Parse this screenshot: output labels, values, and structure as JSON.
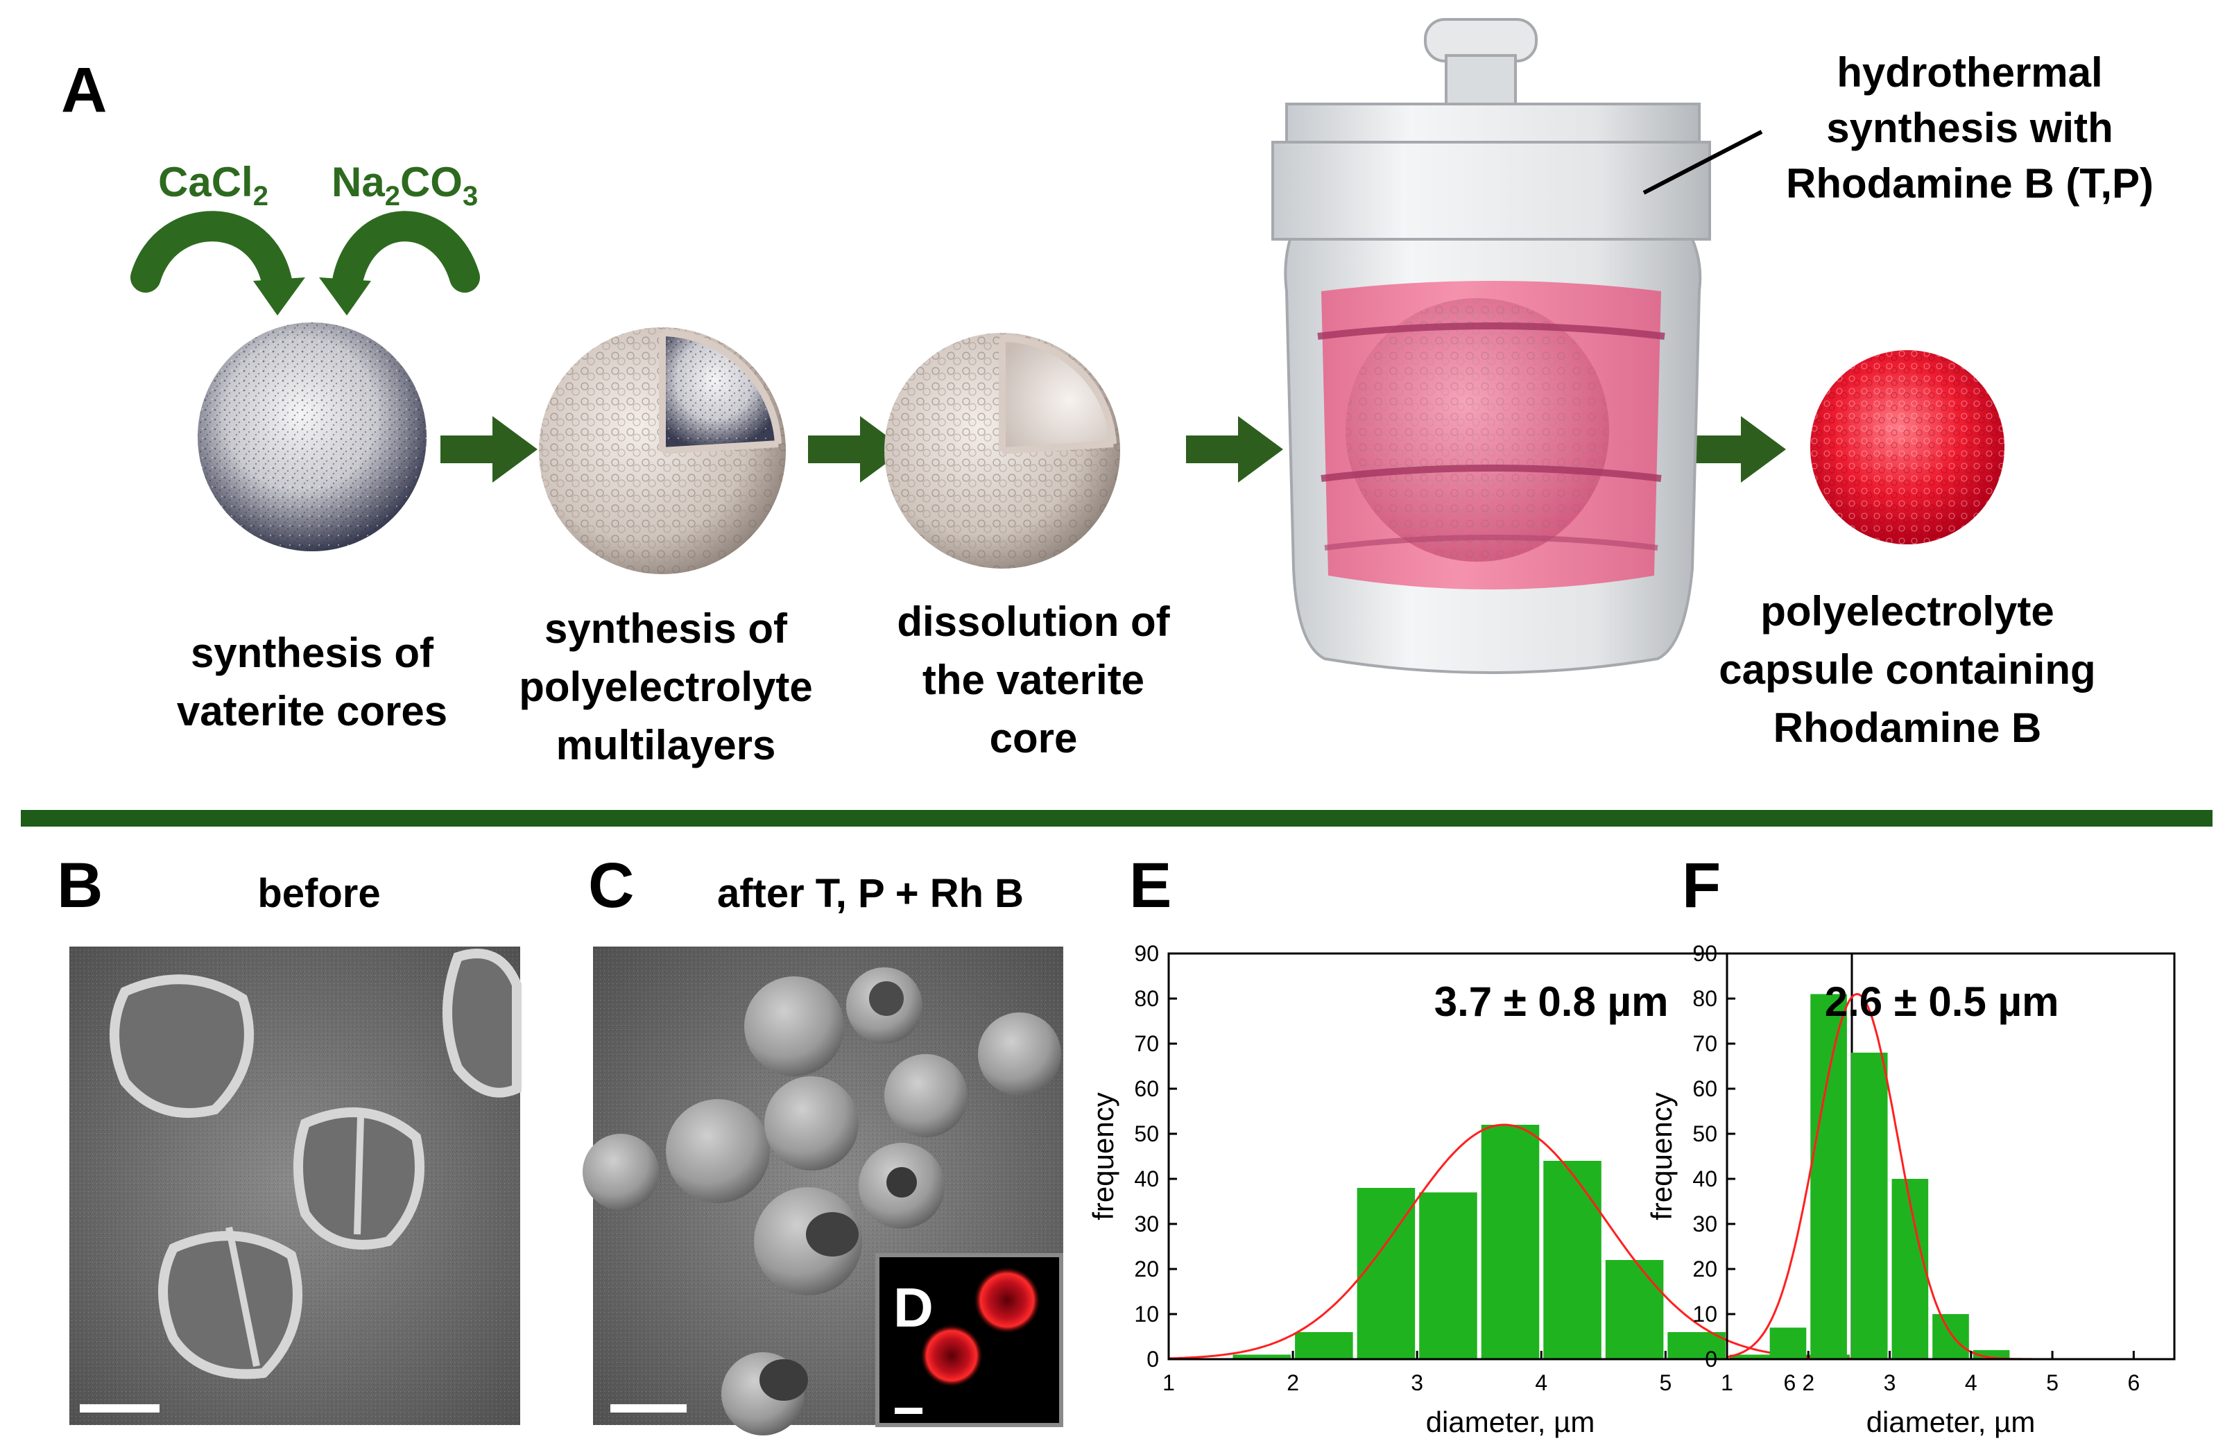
{
  "panels": {
    "A": "A",
    "B": "B",
    "C": "C",
    "D": "D",
    "E": "E",
    "F": "F"
  },
  "scheme": {
    "reagent1": {
      "main": "CaCl",
      "sub": "2"
    },
    "reagent2": {
      "main1": "Na",
      "sub1": "2",
      "main2": "CO",
      "sub2": "3"
    },
    "autoclave_label": [
      "hydrothermal",
      "synthesis with",
      "Rhodamine B (T,P)"
    ],
    "steps": [
      {
        "lines": [
          "synthesis of",
          "vaterite cores"
        ]
      },
      {
        "lines": [
          "synthesis of",
          "polyelectrolyte",
          "multilayers"
        ]
      },
      {
        "lines": [
          "dissolution of",
          "the vaterite",
          "core"
        ]
      },
      {
        "lines": [
          "polyelectrolyte",
          "capsule containing",
          "Rhodamine B"
        ]
      }
    ],
    "colors": {
      "arrow": "#2d5e1e",
      "reagent": "#2d6a1f",
      "divider": "#1e5c18",
      "capsule": "#e8182c"
    }
  },
  "micrographs": {
    "B_title": "before",
    "C_title": "after T, P + Rh B"
  },
  "chart_data": [
    {
      "type": "bar",
      "panel": "E",
      "annotation": "3.7 ± 0.8 µm",
      "xlabel": "diameter, µm",
      "ylabel": "frequency",
      "xlim": [
        1,
        6.5
      ],
      "ylim": [
        0,
        90
      ],
      "xticks": [
        1,
        2,
        3,
        4,
        5,
        6
      ],
      "yticks": [
        0,
        10,
        20,
        30,
        40,
        50,
        60,
        70,
        80,
        90
      ],
      "bin_width": 0.5,
      "bins": [
        {
          "x": 1.75,
          "y": 1
        },
        {
          "x": 2.25,
          "y": 6
        },
        {
          "x": 2.75,
          "y": 38
        },
        {
          "x": 3.25,
          "y": 37
        },
        {
          "x": 3.75,
          "y": 52
        },
        {
          "x": 4.25,
          "y": 44
        },
        {
          "x": 4.75,
          "y": 22
        },
        {
          "x": 5.25,
          "y": 6
        },
        {
          "x": 5.75,
          "y": 1
        },
        {
          "x": 6.25,
          "y": 1
        }
      ],
      "fit": {
        "mean": 3.7,
        "sd": 0.8,
        "peak": 52
      },
      "bar_color": "#1fb31f",
      "fit_color": "#ff2020"
    },
    {
      "type": "bar",
      "panel": "F",
      "annotation": "2.6 ± 0.5 µm",
      "xlabel": "diameter, µm",
      "ylabel": "frequency",
      "xlim": [
        1,
        6.5
      ],
      "ylim": [
        0,
        90
      ],
      "xticks": [
        1,
        2,
        3,
        4,
        5,
        6
      ],
      "yticks": [
        0,
        10,
        20,
        30,
        40,
        50,
        60,
        70,
        80,
        90
      ],
      "bin_width": 0.5,
      "bins": [
        {
          "x": 1.75,
          "y": 7
        },
        {
          "x": 2.25,
          "y": 81
        },
        {
          "x": 2.75,
          "y": 68
        },
        {
          "x": 3.25,
          "y": 40
        },
        {
          "x": 3.75,
          "y": 10
        },
        {
          "x": 4.25,
          "y": 2
        }
      ],
      "fit": {
        "mean": 2.6,
        "sd": 0.5,
        "peak": 81
      },
      "bar_color": "#1fb31f",
      "fit_color": "#ff2020"
    }
  ]
}
